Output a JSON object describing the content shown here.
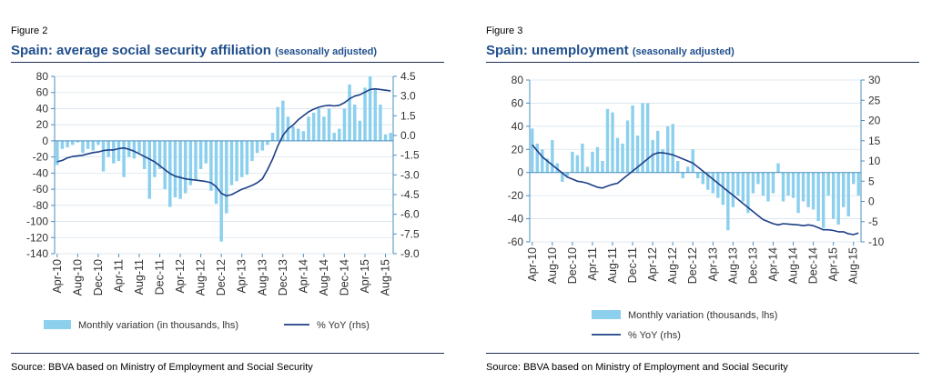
{
  "colors": {
    "bar": "#8cd0ee",
    "line": "#1d3f86",
    "title": "#1f4e8c",
    "axis": "#4a8fc2"
  },
  "panels": [
    {
      "figure_label": "Figure 2",
      "title_main": "Spain: average social security affiliation",
      "title_note": "(seasonally adjusted)",
      "source": "Source: BBVA based on Ministry of Employment and Social Security"
    },
    {
      "figure_label": "Figure 3",
      "title_main": "Spain: unemployment",
      "title_note": "(seasonally adjusted)",
      "source": "Source: BBVA based on Ministry of Employment and Social Security"
    }
  ],
  "chart_data": [
    {
      "type": "bar+line",
      "title": "Spain: average social security affiliation (seasonally adjusted)",
      "x_tick_labels": [
        "Apr-10",
        "Aug-10",
        "Dec-10",
        "Apr-11",
        "Aug-11",
        "Dec-11",
        "Apr-12",
        "Aug-12",
        "Dec-12",
        "Apr-13",
        "Aug-13",
        "Dec-13",
        "Apr-14",
        "Aug-14",
        "Dec-14",
        "Apr-15",
        "Aug-15"
      ],
      "x_start": "Apr-10",
      "y_left": {
        "range": [
          -140,
          80
        ],
        "ticks": [
          80,
          60,
          40,
          20,
          0,
          -20,
          -40,
          -60,
          -80,
          -100,
          -120,
          -140
        ]
      },
      "y_right": {
        "range": [
          -9.0,
          4.5
        ],
        "ticks": [
          "4.5",
          "3.0",
          "1.5",
          "0.0",
          "-1.5",
          "-3.0",
          "-4.5",
          "-6.0",
          "-7.5",
          "-9.0"
        ]
      },
      "series": [
        {
          "name": "Monthly variation (in thousands, lhs)",
          "type": "bar",
          "axis": "left",
          "values": [
            -30,
            -10,
            -8,
            -5,
            -2,
            -15,
            -10,
            -12,
            -5,
            -38,
            -20,
            -28,
            -25,
            -45,
            -20,
            -22,
            -15,
            -35,
            -72,
            -45,
            -35,
            -60,
            -82,
            -70,
            -72,
            -65,
            -55,
            -48,
            -35,
            -28,
            -62,
            -78,
            -125,
            -90,
            -55,
            -50,
            -45,
            -42,
            -25,
            -15,
            -12,
            -5,
            10,
            42,
            50,
            30,
            18,
            15,
            12,
            30,
            35,
            40,
            30,
            40,
            10,
            15,
            40,
            70,
            45,
            25,
            66,
            80,
            65,
            45,
            8,
            10
          ]
        },
        {
          "name": "% YoY (rhs)",
          "type": "line",
          "axis": "right",
          "values": [
            -2.0,
            -1.9,
            -1.7,
            -1.6,
            -1.55,
            -1.5,
            -1.4,
            -1.3,
            -1.25,
            -1.15,
            -1.1,
            -1.1,
            -1.0,
            -0.95,
            -1.05,
            -1.2,
            -1.4,
            -1.6,
            -1.8,
            -2.0,
            -2.3,
            -2.6,
            -2.9,
            -3.1,
            -3.2,
            -3.3,
            -3.35,
            -3.4,
            -3.45,
            -3.5,
            -3.6,
            -3.9,
            -4.4,
            -4.6,
            -4.5,
            -4.3,
            -4.1,
            -3.95,
            -3.8,
            -3.6,
            -3.3,
            -2.6,
            -1.8,
            -0.8,
            0.0,
            0.5,
            0.8,
            1.2,
            1.5,
            1.8,
            2.0,
            2.15,
            2.25,
            2.3,
            2.25,
            2.3,
            2.5,
            2.8,
            3.0,
            3.1,
            3.3,
            3.5,
            3.55,
            3.5,
            3.45,
            3.4
          ]
        }
      ],
      "legend": [
        "Monthly variation (in thousands, lhs)",
        "% YoY (rhs)"
      ],
      "legend_position": "bottom"
    },
    {
      "type": "bar+line",
      "title": "Spain: unemployment (seasonally adjusted)",
      "x_tick_labels": [
        "Apr-10",
        "Aug-10",
        "Dec-10",
        "Apr-11",
        "Aug-11",
        "Dec-11",
        "Apr-12",
        "Aug-12",
        "Dec-12",
        "Apr-13",
        "Aug-13",
        "Dec-13",
        "Apr-14",
        "Aug-14",
        "Dec-14",
        "Apr-15",
        "Aug-15"
      ],
      "x_start": "Apr-10",
      "y_left": {
        "range": [
          -60,
          80
        ],
        "ticks": [
          80,
          60,
          40,
          20,
          0,
          -20,
          -40,
          -60
        ]
      },
      "y_right": {
        "range": [
          -10,
          30
        ],
        "ticks": [
          30,
          25,
          20,
          15,
          10,
          5,
          0,
          -5,
          -10
        ]
      },
      "series": [
        {
          "name": "Monthly variation (thousands, lhs)",
          "type": "bar",
          "axis": "left",
          "values": [
            38,
            25,
            20,
            12,
            28,
            8,
            -8,
            -3,
            18,
            15,
            25,
            5,
            18,
            22,
            10,
            55,
            52,
            30,
            25,
            45,
            58,
            32,
            60,
            60,
            28,
            36,
            20,
            40,
            42,
            10,
            -5,
            5,
            20,
            -5,
            -10,
            -15,
            -18,
            -22,
            -28,
            -50,
            -30,
            -20,
            -25,
            -35,
            -18,
            -10,
            -20,
            -25,
            -18,
            8,
            -25,
            -20,
            -22,
            -35,
            -25,
            -30,
            -32,
            -42,
            -48,
            -20,
            -40,
            -45,
            -30,
            -38,
            -10,
            -20
          ]
        },
        {
          "name": "% YoY (rhs)",
          "type": "line",
          "axis": "right",
          "values": [
            14,
            12.5,
            11,
            10,
            9,
            8,
            7,
            6,
            5.5,
            5,
            4.8,
            4.5,
            4,
            3.5,
            3.3,
            3.8,
            4.2,
            4.5,
            5.5,
            6.5,
            7.5,
            8.5,
            9.5,
            10.5,
            11.5,
            12,
            12,
            11.8,
            11.5,
            11,
            10.5,
            10,
            9.5,
            8.5,
            7.5,
            6.5,
            5.5,
            4.5,
            3.5,
            2.5,
            1.5,
            0.5,
            -0.5,
            -1.5,
            -2.5,
            -3.5,
            -4.5,
            -5,
            -5.5,
            -5.8,
            -5.5,
            -5.6,
            -5.7,
            -5.8,
            -6,
            -5.8,
            -6,
            -6.5,
            -7,
            -7,
            -7.2,
            -7.5,
            -7.5,
            -8,
            -8.2,
            -7.8
          ]
        }
      ],
      "legend": [
        "Monthly variation (thousands, lhs)",
        "% YoY (rhs)"
      ],
      "legend_position": "bottom"
    }
  ]
}
